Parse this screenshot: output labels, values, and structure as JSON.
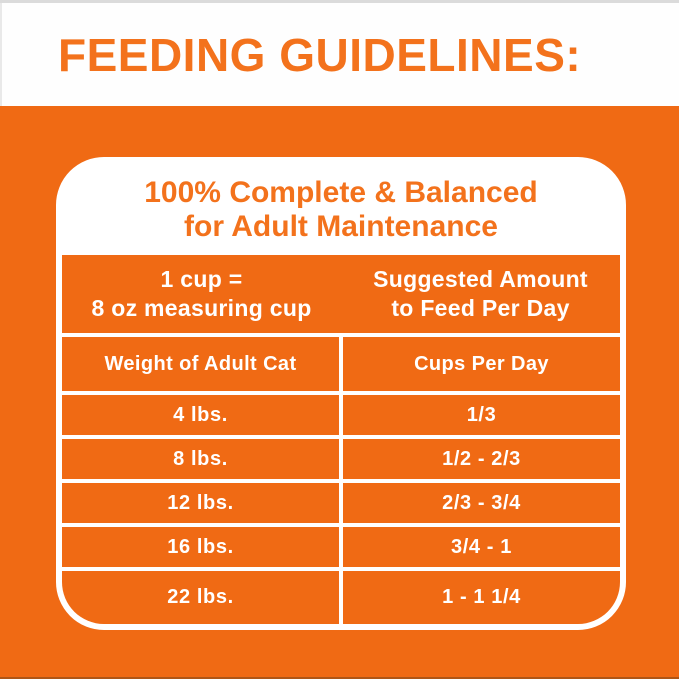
{
  "page_title": "FEEDING GUIDELINES:",
  "card": {
    "header_line1": "100% Complete & Balanced",
    "header_line2": "for Adult Maintenance",
    "measure_note": {
      "line1": "1 cup =",
      "line2": "8 oz measuring cup"
    },
    "suggested": {
      "line1": "Suggested Amount",
      "line2": "to Feed Per Day"
    },
    "table": {
      "columns": [
        "Weight of Adult Cat",
        "Cups Per Day"
      ],
      "rows": [
        [
          "4 lbs.",
          "1/3"
        ],
        [
          "8 lbs.",
          "1/2 - 2/3"
        ],
        [
          "12 lbs.",
          "2/3 - 3/4"
        ],
        [
          "16 lbs.",
          "3/4 - 1"
        ],
        [
          "22 lbs.",
          "1 - 1 1/4"
        ]
      ]
    }
  },
  "colors": {
    "accent_orange": "#F06A14",
    "title_orange": "#F3721C",
    "white": "#FFFFFF"
  }
}
